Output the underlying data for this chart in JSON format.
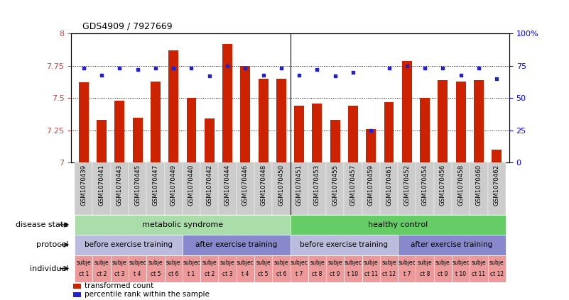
{
  "title": "GDS4909 / 7927669",
  "samples": [
    "GSM1070439",
    "GSM1070441",
    "GSM1070443",
    "GSM1070445",
    "GSM1070447",
    "GSM1070449",
    "GSM1070440",
    "GSM1070442",
    "GSM1070444",
    "GSM1070446",
    "GSM1070448",
    "GSM1070450",
    "GSM1070451",
    "GSM1070453",
    "GSM1070455",
    "GSM1070457",
    "GSM1070459",
    "GSM1070461",
    "GSM1070452",
    "GSM1070454",
    "GSM1070456",
    "GSM1070458",
    "GSM1070460",
    "GSM1070462"
  ],
  "bar_values": [
    7.62,
    7.33,
    7.48,
    7.35,
    7.63,
    7.87,
    7.5,
    7.34,
    7.92,
    7.75,
    7.65,
    7.65,
    7.44,
    7.46,
    7.33,
    7.44,
    7.26,
    7.47,
    7.79,
    7.5,
    7.64,
    7.63,
    7.64,
    7.1
  ],
  "dot_values": [
    73,
    68,
    73,
    72,
    73,
    73,
    73,
    67,
    75,
    73,
    68,
    73,
    68,
    72,
    67,
    70,
    25,
    73,
    75,
    73,
    73,
    68,
    73,
    65
  ],
  "ymin": 7.0,
  "ymax": 8.0,
  "yticks": [
    7.0,
    7.25,
    7.5,
    7.75,
    8.0
  ],
  "ytick_labels": [
    "7",
    "7.25",
    "7.5",
    "7.75",
    "8"
  ],
  "y2ticks": [
    0,
    25,
    50,
    75,
    100
  ],
  "y2tick_labels": [
    "0",
    "25",
    "50",
    "75",
    "100%"
  ],
  "bar_color": "#cc2200",
  "dot_color": "#2222cc",
  "disease_state_groups": [
    {
      "label": "metabolic syndrome",
      "start": 0,
      "end": 11,
      "color": "#aaddaa"
    },
    {
      "label": "healthy control",
      "start": 12,
      "end": 23,
      "color": "#66cc66"
    }
  ],
  "protocol_groups": [
    {
      "label": "before exercise training",
      "start": 0,
      "end": 5,
      "color": "#bbbbdd"
    },
    {
      "label": "after exercise training",
      "start": 6,
      "end": 11,
      "color": "#8888cc"
    },
    {
      "label": "before exercise training",
      "start": 12,
      "end": 17,
      "color": "#bbbbdd"
    },
    {
      "label": "after exercise training",
      "start": 18,
      "end": 23,
      "color": "#8888cc"
    }
  ],
  "individual_labels_top": [
    "subje",
    "subje",
    "subje",
    "subjec",
    "subje",
    "subje",
    "subjec",
    "subje",
    "subje",
    "subjec",
    "subje",
    "subje",
    "subjec",
    "subje",
    "subje",
    "subjec",
    "subje",
    "subje",
    "subjec",
    "subje",
    "subje",
    "subjec",
    "subje",
    "subje"
  ],
  "individual_labels_bot": [
    "ct 1",
    "ct 2",
    "ct 3",
    "t 4",
    "ct 5",
    "ct 6",
    "t 1",
    "ct 2",
    "ct 3",
    "t 4",
    "ct 5",
    "ct 6",
    "t 7",
    "ct 8",
    "ct 9",
    "t 10",
    "ct 11",
    "ct 12",
    "t 7",
    "ct 8",
    "ct 9",
    "t 10",
    "ct 11",
    "ct 12"
  ],
  "individual_color": "#ee9999",
  "bg_color": "#dddddd"
}
